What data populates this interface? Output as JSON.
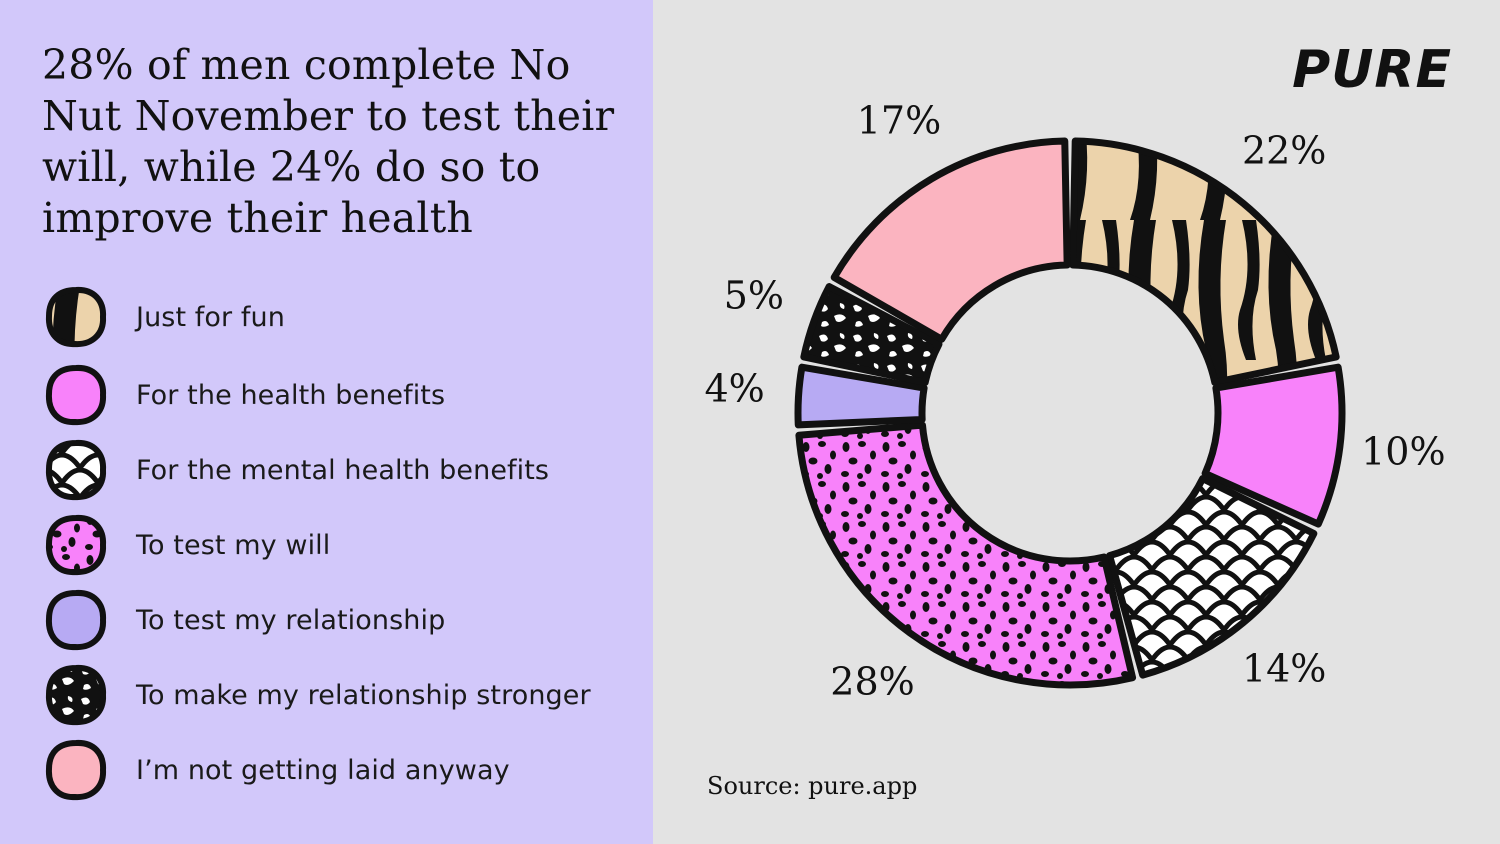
{
  "headline": "28% of men complete No Nut November to test their will, while 24% do so to improve their health",
  "brand": "PURE",
  "source": "Source: pure.app",
  "colors": {
    "left_bg": "#d2c8fa",
    "right_bg": "#e3e3e3",
    "tan": "#ecd3ab",
    "magenta": "#f882fa",
    "lavender": "#b7aaf3",
    "pink": "#fbb4c0",
    "white": "#ffffff",
    "black": "#111111"
  },
  "chart_data": {
    "type": "pie",
    "donut": true,
    "title": "28% of men complete No Nut November to test their will, while 24% do so to improve their health",
    "legend_position": "left",
    "slices": [
      {
        "label": "Just for fun",
        "value": 22,
        "value_label": "22%",
        "pattern": "tiger",
        "color": "#ecd3ab"
      },
      {
        "label": "For the health benefits",
        "value": 10,
        "value_label": "10%",
        "pattern": "solid",
        "color": "#f882fa"
      },
      {
        "label": "For the mental health benefits",
        "value": 14,
        "value_label": "14%",
        "pattern": "scales",
        "color": "#ffffff"
      },
      {
        "label": "To test my will",
        "value": 28,
        "value_label": "28%",
        "pattern": "dots",
        "color": "#f882fa"
      },
      {
        "label": "To test my relationship",
        "value": 4,
        "value_label": "4%",
        "pattern": "solid",
        "color": "#b7aaf3"
      },
      {
        "label": "To make my relationship stronger",
        "value": 5,
        "value_label": "5%",
        "pattern": "splatter",
        "color": "#111111"
      },
      {
        "label": "I’m not getting laid anyway",
        "value": 17,
        "value_label": "17%",
        "pattern": "solid",
        "color": "#fbb4c0"
      }
    ]
  }
}
